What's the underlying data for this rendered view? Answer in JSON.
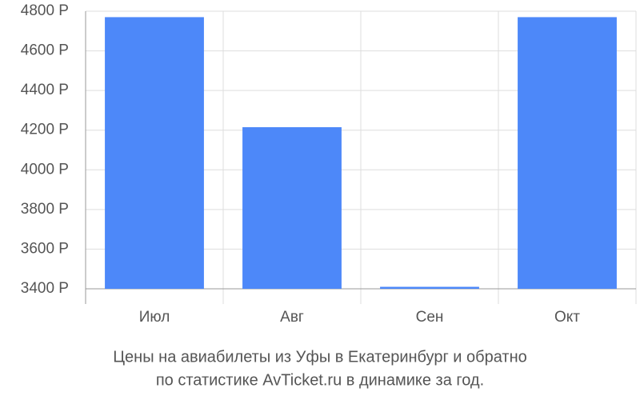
{
  "chart_data": {
    "type": "bar",
    "title": "Цены на авиабилеты из Уфы в Екатеринбург и обратно",
    "subtitle": "по статистике AvTicket.ru в динамике за год.",
    "categories": [
      "Июл",
      "Авг",
      "Сен",
      "Окт"
    ],
    "values": [
      4770,
      4215,
      3410,
      4770
    ],
    "color": "#4d88f9",
    "ylim": [
      3400,
      4800
    ],
    "yticks": [
      {
        "value": 3400,
        "label": "3400 Р"
      },
      {
        "value": 3600,
        "label": "3600 Р"
      },
      {
        "value": 3800,
        "label": "3800 Р"
      },
      {
        "value": 4000,
        "label": "4000 Р"
      },
      {
        "value": 4200,
        "label": "4200 Р"
      },
      {
        "value": 4400,
        "label": "4400 Р"
      },
      {
        "value": 4600,
        "label": "4600 Р"
      },
      {
        "value": 4800,
        "label": "4800 Р"
      }
    ],
    "grid": true
  }
}
